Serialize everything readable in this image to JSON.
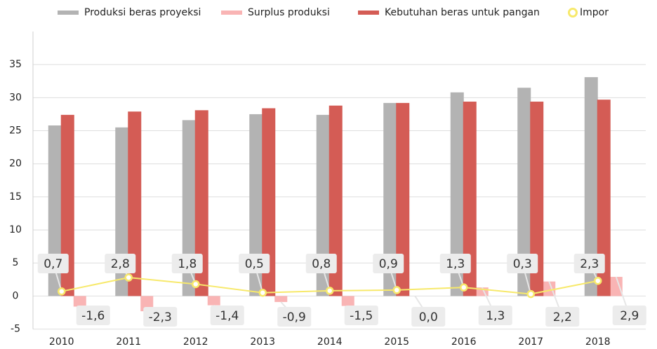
{
  "chart_data": {
    "type": "bar",
    "categories": [
      "2010",
      "2011",
      "2012",
      "2013",
      "2014",
      "2015",
      "2016",
      "2017",
      "2018"
    ],
    "series": [
      {
        "name": "Produksi beras proyeksi",
        "color": "#b3b3b3",
        "values": [
          25.8,
          25.5,
          26.6,
          27.5,
          27.4,
          29.2,
          30.8,
          31.5,
          33.1
        ]
      },
      {
        "name": "Surplus produksi",
        "color": "#f9b4b4",
        "values": [
          -1.6,
          -2.3,
          -1.4,
          -0.9,
          -1.5,
          0.0,
          1.3,
          2.2,
          2.9
        ],
        "value_labels": [
          "-1,6",
          "-2,3",
          "-1,4",
          "-0,9",
          "-1,5",
          "0,0",
          "1,3",
          "2,2",
          "2,9"
        ]
      },
      {
        "name": "Kebutuhan beras untuk pangan",
        "color": "#d45c55",
        "values": [
          27.4,
          27.9,
          28.1,
          28.4,
          28.8,
          29.2,
          29.4,
          29.4,
          29.7
        ]
      },
      {
        "name": "Impor",
        "type": "line",
        "color": "#f7e96b",
        "values": [
          0.7,
          2.8,
          1.8,
          0.5,
          0.8,
          0.9,
          1.3,
          0.3,
          2.3
        ],
        "value_labels": [
          "0,7",
          "2,8",
          "1,8",
          "0,5",
          "0,8",
          "0,9",
          "1,3",
          "0,3",
          "2,3"
        ]
      }
    ],
    "ylim": [
      -5,
      40
    ],
    "yticks": [
      -5,
      0,
      5,
      10,
      15,
      20,
      25,
      30,
      35
    ],
    "grid": true,
    "legend": "top"
  }
}
